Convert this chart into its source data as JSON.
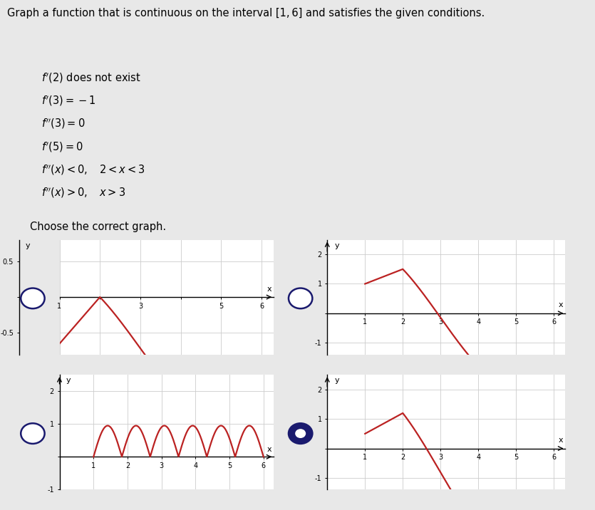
{
  "title": "Graph a function that is continuous on the interval [1, 6] and satisfies the given conditions.",
  "conditions_italic": [
    "f ′(2) does not exist",
    "f ′(3) = −1",
    "f ″(3) = 0",
    "f ′(5) = 0",
    "f ″(x) < 0,   2 < x < 3",
    "f ″(x) > 0,   x > 3"
  ],
  "choose_text": "Choose the correct graph.",
  "selected_graph": 3,
  "graph_bg": "#ffffff",
  "curve_color": "#bb2222",
  "grid_color": "#cccccc",
  "axis_color": "#000000",
  "bg_color": "#e8e8e8"
}
